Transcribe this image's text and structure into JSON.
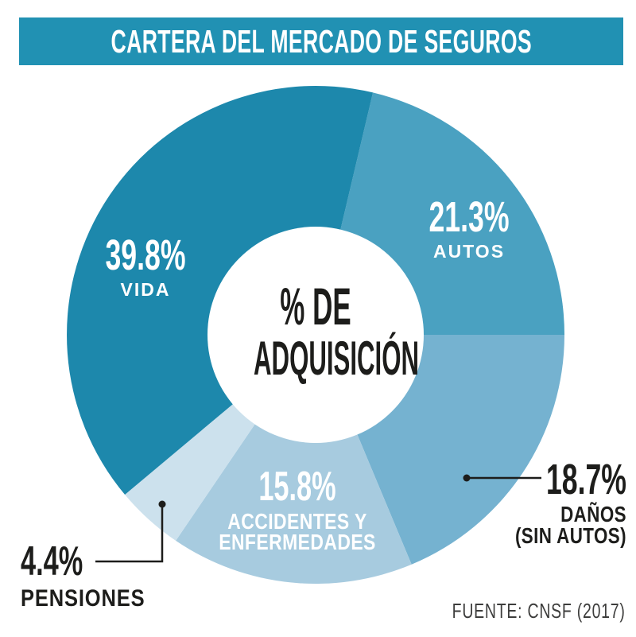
{
  "title": "CARTERA DEL MERCADO DE SEGUROS",
  "source": "FUENTE: CNSF (2017)",
  "center": {
    "line1": "% DE",
    "line2": "ADQUISICIÓN"
  },
  "labels": {
    "vida": {
      "pct": "39.8%",
      "name": "VIDA"
    },
    "autos": {
      "pct": "21.3%",
      "name": "AUTOS"
    },
    "danos": {
      "pct": "18.7%",
      "name": "DAÑOS",
      "name2": "(SIN AUTOS)"
    },
    "accidentes": {
      "pct": "15.8%",
      "name": "ACCIDENTES Y",
      "name2": "ENFERMEDADES"
    },
    "pensiones": {
      "pct": "4.4%",
      "name": "PENSIONES"
    }
  },
  "colors": {
    "title_bar": "#2191b3",
    "vida": "#1d88ac",
    "autos": "#4aa1c1",
    "danos": "#75b2d0",
    "accidentes": "#a7cbdf",
    "pensiones": "#cce1ed",
    "callout": "#1d1d1b",
    "source_text": "#3d3d3c",
    "center_hole": "#ffffff"
  },
  "chart_data": {
    "type": "pie",
    "subtype": "donut",
    "title": "CARTERA DEL MERCADO DE SEGUROS",
    "center_label": "% DE ADQUISICIÓN",
    "source": "FUENTE: CNSF (2017)",
    "direction": "clockwise",
    "start_angle_deg_clockwise_from_top": 13.32,
    "segments": [
      {
        "label": "AUTOS",
        "value": 21.3,
        "color": "#4aa1c1",
        "label_color": "#ffffff"
      },
      {
        "label": "DAÑOS (SIN AUTOS)",
        "value": 18.7,
        "color": "#75b2d0",
        "label_color": "#1d1d1b"
      },
      {
        "label": "ACCIDENTES Y ENFERMEDADES",
        "value": 15.8,
        "color": "#a7cbdf",
        "label_color": "#ffffff"
      },
      {
        "label": "PENSIONES",
        "value": 4.4,
        "color": "#cce1ed",
        "label_color": "#1d1d1b"
      },
      {
        "label": "VIDA",
        "value": 39.8,
        "color": "#1d88ac",
        "label_color": "#ffffff"
      }
    ]
  }
}
